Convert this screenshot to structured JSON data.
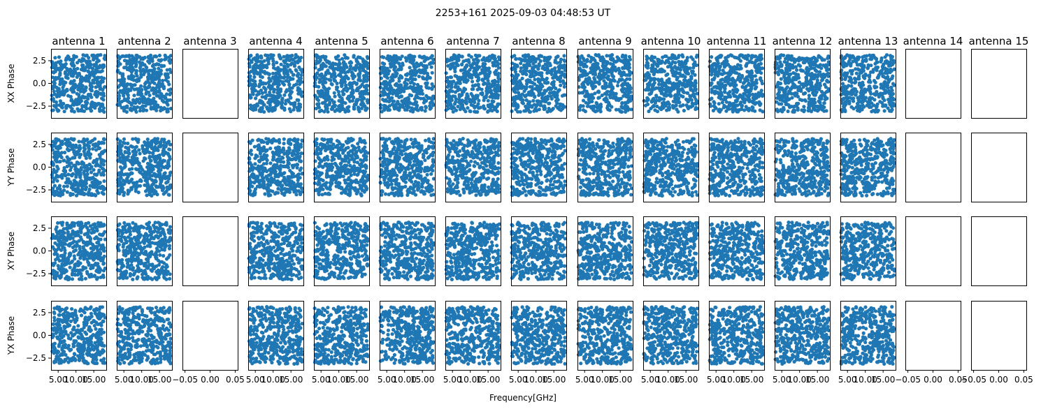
{
  "chart_data": {
    "type": "scatter",
    "title": "2253+161 2025-09-03 04:48:53 UT",
    "xlabel": "Frequency[GHz]",
    "grid": false,
    "legend": "none",
    "point_color": "#1f77b4",
    "columns": [
      "antenna 1",
      "antenna 2",
      "antenna 3",
      "antenna 4",
      "antenna 5",
      "antenna 6",
      "antenna 7",
      "antenna 8",
      "antenna 9",
      "antenna 10",
      "antenna 11",
      "antenna 12",
      "antenna 13",
      "antenna 14",
      "antenna 15"
    ],
    "rows": [
      "XX Phase",
      "YY Phase",
      "XY Phase",
      "YX Phase"
    ],
    "ylim": [
      -3.8,
      3.8
    ],
    "yticks": [
      2.5,
      0.0,
      -2.5
    ],
    "ytick_labels": [
      "2.5",
      "0.0",
      "−2.5"
    ],
    "xlim_data": [
      3.0,
      18.5
    ],
    "xticks_data": [
      5.0,
      10.0,
      15.0
    ],
    "xtick_labels_data": [
      "5.00",
      "10.00",
      "15.00"
    ],
    "xlim_empty": [
      -0.055,
      0.055
    ],
    "xticks_empty": [
      -0.05,
      0.0,
      0.05
    ],
    "xtick_labels_empty": [
      "−0.05",
      "0.00",
      "0.05"
    ],
    "antennas_with_data": [
      1,
      2,
      4,
      5,
      6,
      7,
      8,
      9,
      10,
      11,
      12,
      13
    ],
    "empty_antennas": [
      3,
      14,
      15
    ],
    "phase_range": [
      -3.1416,
      3.1416
    ],
    "freq_range": [
      3.2,
      18.2
    ],
    "points_per_panel": 420
  }
}
